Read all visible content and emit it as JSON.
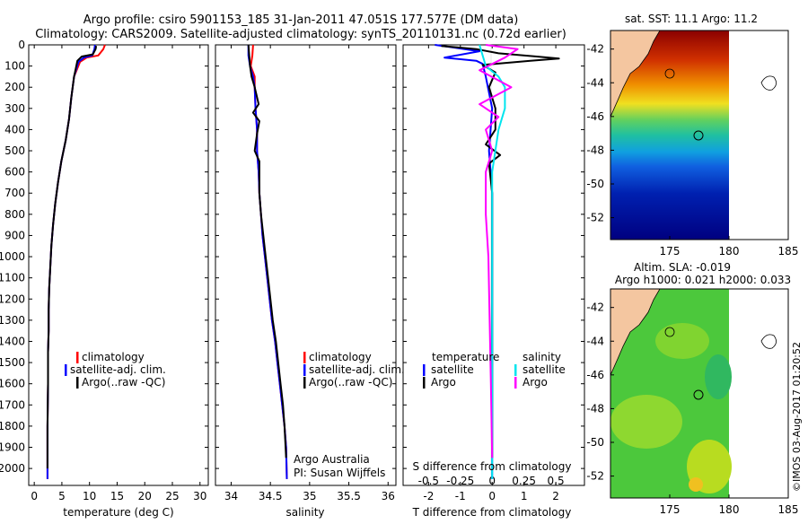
{
  "header": {
    "title_line1": "Argo profile: csiro 5901153_185 31-Jan-2011 47.051S 177.577E (DM data)",
    "title_line2": "Climatology: CARS2009. Satellite-adjusted climatology: synTS_20110131.nc (0.72d earlier)"
  },
  "colors": {
    "climatology": "#ff0000",
    "satellite": "#0000ff",
    "argo": "#000000",
    "sal_satellite": "#00e5ee",
    "sal_argo": "#ff00ff",
    "land": "#f4c6a0"
  },
  "chart_data": [
    {
      "type": "line",
      "id": "temperature",
      "xlabel": "temperature (deg C)",
      "ylabel": "",
      "xlim": [
        -1,
        31.5
      ],
      "ylim": [
        2080,
        0
      ],
      "xticks": [
        "0",
        "5",
        "10",
        "15",
        "20",
        "25",
        "30"
      ],
      "yticks": [
        "0",
        "100",
        "200",
        "300",
        "400",
        "500",
        "600",
        "700",
        "800",
        "900",
        "1000",
        "1100",
        "1200",
        "1300",
        "1400",
        "1500",
        "1600",
        "1700",
        "1800",
        "1900",
        "2000"
      ],
      "legend": [
        "climatology",
        "satellite-adj. clim.",
        "Argo(..raw -QC)"
      ],
      "series": [
        {
          "name": "climatology",
          "color": "#ff0000",
          "x": [
            12.8,
            12.5,
            11.6,
            9.5,
            8.3,
            7.2,
            6.7,
            6.3,
            5.7,
            4.9,
            4.3,
            3.8,
            3.4,
            3.1,
            2.9,
            2.7,
            2.6,
            2.6,
            2.5,
            2.5,
            2.4,
            2.4,
            2.4
          ],
          "y": [
            0,
            20,
            50,
            60,
            80,
            150,
            250,
            350,
            450,
            550,
            650,
            750,
            850,
            950,
            1050,
            1150,
            1250,
            1350,
            1450,
            1600,
            1800,
            2000,
            2050
          ]
        },
        {
          "name": "satellite-adj. clim.",
          "color": "#0000ff",
          "x": [
            11.0,
            10.9,
            10.5,
            9.0,
            8.0,
            7.2,
            6.7,
            6.3,
            5.7,
            4.9,
            4.3,
            3.8,
            3.4,
            3.1,
            2.9,
            2.7,
            2.6,
            2.6,
            2.5,
            2.5,
            2.4,
            2.4,
            2.4
          ],
          "y": [
            0,
            20,
            50,
            60,
            80,
            150,
            250,
            350,
            450,
            550,
            650,
            750,
            850,
            950,
            1050,
            1150,
            1250,
            1350,
            1450,
            1600,
            1800,
            2000,
            2050
          ]
        },
        {
          "name": "Argo(..raw -QC)",
          "color": "#000000",
          "x": [
            11.2,
            11.1,
            10.6,
            8.6,
            7.8,
            7.2,
            6.7,
            6.3,
            5.7,
            4.9,
            4.3,
            3.8,
            3.4,
            3.1,
            2.9,
            2.7,
            2.6,
            2.6,
            2.5,
            2.5,
            2.4,
            2.4
          ],
          "y": [
            5,
            20,
            45,
            55,
            75,
            150,
            250,
            350,
            450,
            550,
            650,
            750,
            850,
            950,
            1050,
            1150,
            1250,
            1350,
            1450,
            1600,
            1800,
            2000
          ]
        }
      ]
    },
    {
      "type": "line",
      "id": "salinity",
      "xlabel": "salinity",
      "xlim": [
        33.8,
        36.1
      ],
      "ylim": [
        2080,
        0
      ],
      "xticks": [
        "34",
        "34.5",
        "35",
        "35.5",
        "36"
      ],
      "legend": [
        "climatology",
        "satellite-adj. clim.",
        "Argo(..raw -QC)"
      ],
      "annotation_line1": "Argo Australia",
      "annotation_line2": "PI: Susan Wijffels",
      "series": [
        {
          "name": "climatology",
          "color": "#ff0000",
          "x": [
            34.28,
            34.27,
            34.25,
            34.3,
            34.3,
            34.31,
            34.33,
            34.33,
            34.35,
            34.36,
            34.38,
            34.4,
            34.43,
            34.46,
            34.49,
            34.52,
            34.56,
            34.59,
            34.62,
            34.65,
            34.68,
            34.7,
            34.71
          ],
          "y": [
            0,
            50,
            100,
            150,
            200,
            300,
            400,
            500,
            600,
            700,
            800,
            900,
            1000,
            1100,
            1200,
            1300,
            1400,
            1500,
            1600,
            1700,
            1800,
            1900,
            2050
          ]
        },
        {
          "name": "satellite-adj. clim.",
          "color": "#0000ff",
          "x": [
            34.22,
            34.22,
            34.24,
            34.28,
            34.3,
            34.31,
            34.33,
            34.33,
            34.35,
            34.36,
            34.38,
            34.4,
            34.43,
            34.46,
            34.49,
            34.52,
            34.56,
            34.59,
            34.62,
            34.65,
            34.68,
            34.7,
            34.71
          ],
          "y": [
            0,
            50,
            100,
            150,
            200,
            300,
            400,
            500,
            600,
            700,
            800,
            900,
            1000,
            1100,
            1200,
            1300,
            1400,
            1500,
            1600,
            1700,
            1800,
            1900,
            2050
          ]
        },
        {
          "name": "Argo(..raw -QC)",
          "color": "#000000",
          "x": [
            34.22,
            34.23,
            34.24,
            34.26,
            34.3,
            34.35,
            34.28,
            34.36,
            34.33,
            34.3,
            34.36,
            34.36,
            34.38,
            34.41,
            34.44,
            34.47,
            34.5,
            34.53,
            34.57,
            34.6,
            34.63,
            34.66,
            34.68,
            34.7
          ],
          "y": [
            0,
            50,
            100,
            150,
            200,
            280,
            320,
            360,
            420,
            500,
            550,
            700,
            800,
            900,
            1000,
            1100,
            1200,
            1300,
            1400,
            1500,
            1600,
            1700,
            1800,
            1950
          ]
        }
      ]
    },
    {
      "type": "line",
      "id": "difference",
      "xlabel": "T difference from climatology",
      "xlabel_top": "S difference from climatology",
      "xlim": [
        -2.8,
        2.9
      ],
      "ylim": [
        2080,
        0
      ],
      "xticks_bottom": [
        "-2",
        "-1",
        "0",
        "1",
        "2"
      ],
      "xticks_top": [
        "-0.5",
        "-0.25",
        "0",
        "0.25",
        "0.5"
      ],
      "legend_temperature_title": "temperature",
      "legend_salinity_title": "salinity",
      "legend_temperature": [
        "satellite",
        "Argo"
      ],
      "legend_salinity": [
        "satellite",
        "Argo"
      ],
      "series": [
        {
          "name": "temperature satellite",
          "color": "#0000ff",
          "x": [
            -1.8,
            -0.4,
            -1.5,
            -0.5,
            -0.3,
            -0.2,
            0,
            -0.1,
            0,
            0,
            0,
            0,
            0,
            0,
            0,
            0
          ],
          "y": [
            0,
            30,
            60,
            75,
            90,
            150,
            300,
            500,
            700,
            900,
            1100,
            1300,
            1500,
            1700,
            1900,
            2050
          ]
        },
        {
          "name": "temperature Argo",
          "color": "#000000",
          "x": [
            -1.6,
            -0.5,
            0.2,
            1.4,
            2.1,
            1.2,
            -0.3,
            0.1,
            -0.1,
            0.1,
            0.1,
            -0.2,
            0.25,
            -0.1,
            0,
            0,
            0,
            0,
            0,
            0
          ],
          "y": [
            5,
            20,
            40,
            55,
            65,
            75,
            95,
            130,
            200,
            300,
            400,
            470,
            520,
            560,
            700,
            900,
            1100,
            1300,
            1600,
            1950
          ]
        },
        {
          "name": "salinity satellite",
          "color": "#00e5ee",
          "x": [
            -0.1,
            -0.05,
            0.05,
            0.1,
            0.1,
            0.05,
            0,
            0,
            0,
            0,
            0,
            0
          ],
          "y": [
            0,
            100,
            150,
            200,
            300,
            400,
            600,
            800,
            1000,
            1300,
            1600,
            2050
          ]
        },
        {
          "name": "salinity Argo",
          "color": "#ff00ff",
          "x": [
            -0.05,
            0.2,
            0.1,
            -0.1,
            0.15,
            -0.1,
            0.05,
            -0.05,
            0,
            -0.05,
            -0.05,
            -0.03,
            -0.02,
            -0.01,
            0
          ],
          "y": [
            0,
            20,
            60,
            120,
            200,
            280,
            340,
            400,
            500,
            600,
            800,
            1000,
            1300,
            1600,
            1950
          ]
        }
      ]
    }
  ],
  "map_sst": {
    "title": "sat. SST: 11.1 Argo: 11.2",
    "yticks": [
      "-42",
      "-44",
      "-46",
      "-48",
      "-50",
      "-52"
    ],
    "xticks": [
      "175",
      "180",
      "185"
    ]
  },
  "map_sla": {
    "title_line1": "Altim. SLA: -0.019",
    "title_line2": "Argo h1000: 0.021 h2000: 0.033",
    "yticks": [
      "-42",
      "-44",
      "-46",
      "-48",
      "-50",
      "-52"
    ],
    "xticks": [
      "175",
      "180",
      "185"
    ]
  },
  "footer": {
    "credit": "©IMOS 03-Aug-2017 01:20:52"
  }
}
